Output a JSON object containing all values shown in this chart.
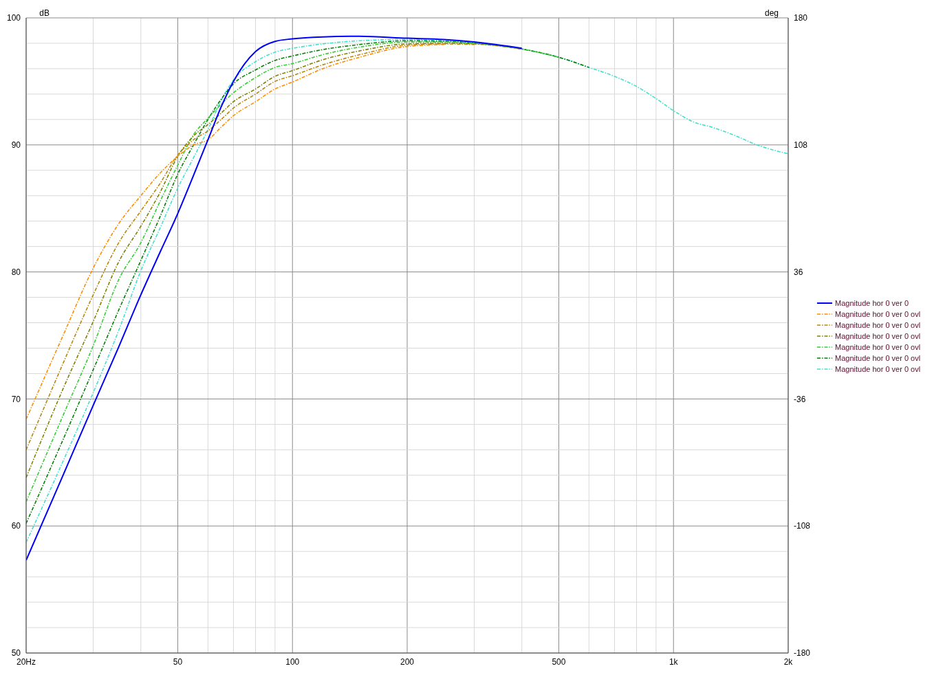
{
  "chart_data": {
    "type": "line",
    "xlabel": null,
    "ylabel": "dB",
    "y2label": "deg",
    "log": "x",
    "grid": true,
    "legend": "right",
    "marker": "none",
    "xlim": [
      20,
      2000
    ],
    "ylim": [
      50,
      100
    ],
    "y2lim": [
      -180,
      180
    ],
    "xticks": [
      {
        "value": 20,
        "label": "20Hz"
      },
      {
        "value": 30,
        "label": null
      },
      {
        "value": 40,
        "label": null
      },
      50,
      {
        "value": 60,
        "label": null
      },
      {
        "value": 70,
        "label": null
      },
      {
        "value": 80,
        "label": null
      },
      {
        "value": 90,
        "label": null
      },
      100,
      200,
      {
        "value": 300,
        "label": null
      },
      {
        "value": 400,
        "label": null
      },
      500,
      {
        "value": 600,
        "label": null
      },
      {
        "value": 700,
        "label": null
      },
      {
        "value": 800,
        "label": null
      },
      {
        "value": 900,
        "label": null
      },
      {
        "value": 1000,
        "label": "1k"
      },
      {
        "value": 2000,
        "label": "2k"
      }
    ],
    "yticks": [
      50,
      {
        "value": 52,
        "label": null
      },
      {
        "value": 54,
        "label": null
      },
      {
        "value": 56,
        "label": null
      },
      {
        "value": 58,
        "label": null
      },
      60,
      {
        "value": 62,
        "label": null
      },
      {
        "value": 64,
        "label": null
      },
      {
        "value": 66,
        "label": null
      },
      {
        "value": 68,
        "label": null
      },
      70,
      {
        "value": 72,
        "label": null
      },
      {
        "value": 74,
        "label": null
      },
      {
        "value": 76,
        "label": null
      },
      {
        "value": 78,
        "label": null
      },
      80,
      {
        "value": 82,
        "label": null
      },
      {
        "value": 84,
        "label": null
      },
      {
        "value": 86,
        "label": null
      },
      {
        "value": 88,
        "label": null
      },
      90,
      {
        "value": 92,
        "label": null
      },
      {
        "value": 94,
        "label": null
      },
      {
        "value": 96,
        "label": null
      },
      {
        "value": 98,
        "label": null
      },
      100
    ],
    "y2ticks": [
      180,
      108,
      36,
      -36,
      -108,
      -180
    ],
    "x": [
      20,
      25,
      30,
      35,
      40,
      45,
      50,
      55,
      60,
      65,
      70,
      80,
      90,
      100,
      120,
      150,
      200,
      250,
      300,
      400,
      500,
      600,
      700,
      800,
      900,
      1000,
      1130,
      1260,
      1460,
      1640,
      2000
    ],
    "series": [
      {
        "name": "Magnitude hor 0 ver 0",
        "color": "#0000ff",
        "line_style": "solid",
        "values": [
          57.3,
          64.0,
          69.5,
          74.1,
          78.2,
          81.6,
          84.6,
          87.6,
          90.4,
          93.0,
          95.0,
          97.35,
          98.15,
          98.35,
          98.5,
          98.55,
          98.4,
          98.3,
          98.1,
          97.6,
          null,
          null,
          null,
          null,
          null,
          null,
          null,
          null,
          null,
          null,
          null
        ]
      },
      {
        "name": "Magnitude hor 0 ver 0 ovl",
        "color": "#ff8c00",
        "line_style": "dashed",
        "values": [
          68.4,
          75.0,
          80.3,
          83.8,
          86.0,
          87.8,
          89.1,
          90.0,
          90.4,
          91.4,
          92.3,
          93.4,
          94.4,
          94.95,
          96.0,
          96.9,
          97.75,
          97.9,
          null,
          null,
          null,
          null,
          null,
          null,
          null,
          null,
          null,
          null,
          null,
          null,
          null
        ]
      },
      {
        "name": "Magnitude hor 0 ver 0 ovl",
        "color": "#b8860b",
        "line_style": "dashed",
        "values": [
          66.0,
          72.8,
          78.2,
          82.3,
          84.8,
          87.0,
          89.2,
          90.4,
          91.1,
          92.0,
          92.9,
          94.0,
          95.0,
          95.45,
          96.3,
          97.1,
          97.85,
          97.95,
          97.9,
          null,
          null,
          null,
          null,
          null,
          null,
          null,
          null,
          null,
          null,
          null,
          null
        ]
      },
      {
        "name": "Magnitude hor 0 ver 0 ovl",
        "color": "#808000",
        "line_style": "dashed",
        "values": [
          63.8,
          70.8,
          76.1,
          80.8,
          83.6,
          86.3,
          89.1,
          90.7,
          91.6,
          92.5,
          93.4,
          94.4,
          95.4,
          95.85,
          96.7,
          97.4,
          97.95,
          98.0,
          97.95,
          97.55,
          null,
          null,
          null,
          null,
          null,
          null,
          null,
          null,
          null,
          null,
          null
        ]
      },
      {
        "name": "Magnitude hor 0 ver 0 ovl",
        "color": "#32cd32",
        "line_style": "dashed",
        "values": [
          61.9,
          68.7,
          74.2,
          79.4,
          82.3,
          85.6,
          88.4,
          90.8,
          92.1,
          93.2,
          94.1,
          95.3,
          96.1,
          96.4,
          97.1,
          97.7,
          98.1,
          98.1,
          98.0,
          97.55,
          96.9,
          null,
          null,
          null,
          null,
          null,
          null,
          null,
          null,
          null,
          null
        ]
      },
      {
        "name": "Magnitude hor 0 ver 0 ovl",
        "color": "#008000",
        "line_style": "dashed",
        "values": [
          60.2,
          66.8,
          72.3,
          77.0,
          80.9,
          84.4,
          87.7,
          90.0,
          92.0,
          93.6,
          94.8,
          95.9,
          96.65,
          97.0,
          97.5,
          97.9,
          98.2,
          98.15,
          98.0,
          97.55,
          96.9,
          96.1,
          null,
          null,
          null,
          null,
          null,
          null,
          null,
          null,
          null
        ]
      },
      {
        "name": "Magnitude hor 0 ver 0 ovl",
        "color": "#40e0d0",
        "line_style": "dashed",
        "values": [
          58.7,
          65.1,
          70.5,
          75.4,
          80.1,
          83.5,
          86.6,
          89.0,
          91.2,
          93.5,
          95.1,
          96.55,
          97.3,
          97.6,
          97.95,
          98.2,
          98.3,
          98.2,
          98.05,
          97.55,
          96.9,
          96.1,
          95.4,
          94.6,
          93.65,
          92.7,
          91.8,
          91.4,
          90.7,
          90.05,
          89.3
        ]
      }
    ]
  }
}
